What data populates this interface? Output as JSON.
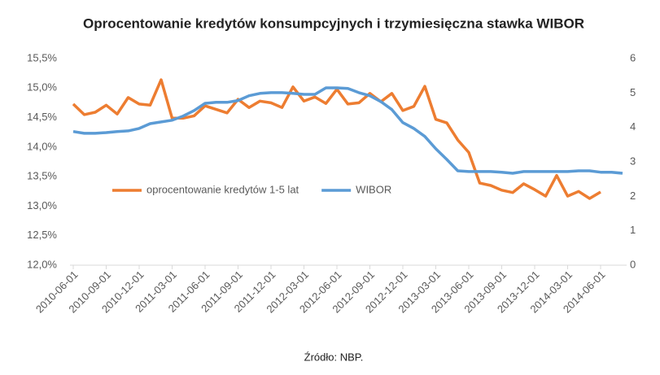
{
  "chart_data": {
    "type": "line",
    "title": "Oprocentowanie kredytów konsumpcyjnych i trzymiesięczna stawka WIBOR",
    "source": "Źródło: NBP.",
    "x": [
      "2010-06-01",
      "2010-07-01",
      "2010-08-01",
      "2010-09-01",
      "2010-10-01",
      "2010-11-01",
      "2010-12-01",
      "2011-01-01",
      "2011-02-01",
      "2011-03-01",
      "2011-04-01",
      "2011-05-01",
      "2011-06-01",
      "2011-07-01",
      "2011-08-01",
      "2011-09-01",
      "2011-10-01",
      "2011-11-01",
      "2011-12-01",
      "2012-01-01",
      "2012-02-01",
      "2012-03-01",
      "2012-04-01",
      "2012-05-01",
      "2012-06-01",
      "2012-07-01",
      "2012-08-01",
      "2012-09-01",
      "2012-10-01",
      "2012-11-01",
      "2012-12-01",
      "2013-01-01",
      "2013-02-01",
      "2013-03-01",
      "2013-04-01",
      "2013-05-01",
      "2013-06-01",
      "2013-07-01",
      "2013-08-01",
      "2013-09-01",
      "2013-10-01",
      "2013-11-01",
      "2013-12-01",
      "2014-01-01",
      "2014-02-01",
      "2014-03-01",
      "2014-04-01",
      "2014-05-01",
      "2014-06-01",
      "2014-07-01",
      "2014-08-01"
    ],
    "xticks": [
      "2010-06-01",
      "2010-09-01",
      "2010-12-01",
      "2011-03-01",
      "2011-06-01",
      "2011-09-01",
      "2011-12-01",
      "2012-03-01",
      "2012-06-01",
      "2012-09-01",
      "2012-12-01",
      "2013-03-01",
      "2013-06-01",
      "2013-09-01",
      "2013-12-01",
      "2014-03-01",
      "2014-06-01"
    ],
    "series": [
      {
        "name": "oprocentowanie kredytów 1-5 lat",
        "color": "#ed7d31",
        "axis": "y",
        "values": [
          14.73,
          14.55,
          14.59,
          14.71,
          14.56,
          14.84,
          14.73,
          14.71,
          15.14,
          14.49,
          14.49,
          14.53,
          14.7,
          14.64,
          14.58,
          14.81,
          14.67,
          14.78,
          14.75,
          14.67,
          15.02,
          14.78,
          14.85,
          14.74,
          14.98,
          14.73,
          14.75,
          14.91,
          14.77,
          14.91,
          14.62,
          14.69,
          15.03,
          14.47,
          14.41,
          14.12,
          13.91,
          13.39,
          13.35,
          13.27,
          13.23,
          13.38,
          13.28,
          13.17,
          13.52,
          13.17,
          13.25,
          13.13,
          13.24,
          null,
          null
        ]
      },
      {
        "name": "WIBOR",
        "color": "#5b9bd5",
        "axis": "y2",
        "values": [
          3.88,
          3.83,
          3.83,
          3.85,
          3.88,
          3.9,
          3.97,
          4.11,
          4.16,
          4.21,
          4.33,
          4.49,
          4.7,
          4.73,
          4.73,
          4.78,
          4.92,
          4.99,
          5.01,
          5.01,
          4.99,
          4.96,
          4.96,
          5.15,
          5.15,
          5.13,
          5.01,
          4.92,
          4.75,
          4.52,
          4.14,
          3.97,
          3.74,
          3.38,
          3.07,
          2.74,
          2.72,
          2.72,
          2.72,
          2.7,
          2.67,
          2.72,
          2.72,
          2.72,
          2.72,
          2.72,
          2.74,
          2.74,
          2.7,
          2.7,
          2.67
        ]
      }
    ],
    "ylim": [
      12,
      15.5
    ],
    "yticks": [
      {
        "value": 12,
        "label": "12,0%"
      },
      {
        "value": 12.5,
        "label": "12,5%"
      },
      {
        "value": 13,
        "label": "13,0%"
      },
      {
        "value": 13.5,
        "label": "13,5%"
      },
      {
        "value": 14,
        "label": "14,0%"
      },
      {
        "value": 14.5,
        "label": "14,5%"
      },
      {
        "value": 15,
        "label": "15,0%"
      },
      {
        "value": 15.5,
        "label": "15,5%"
      }
    ],
    "y2lim": [
      0,
      6
    ],
    "y2ticks": [
      0,
      1,
      2,
      3,
      4,
      5,
      6
    ],
    "grid": false,
    "legend": "center-left"
  }
}
